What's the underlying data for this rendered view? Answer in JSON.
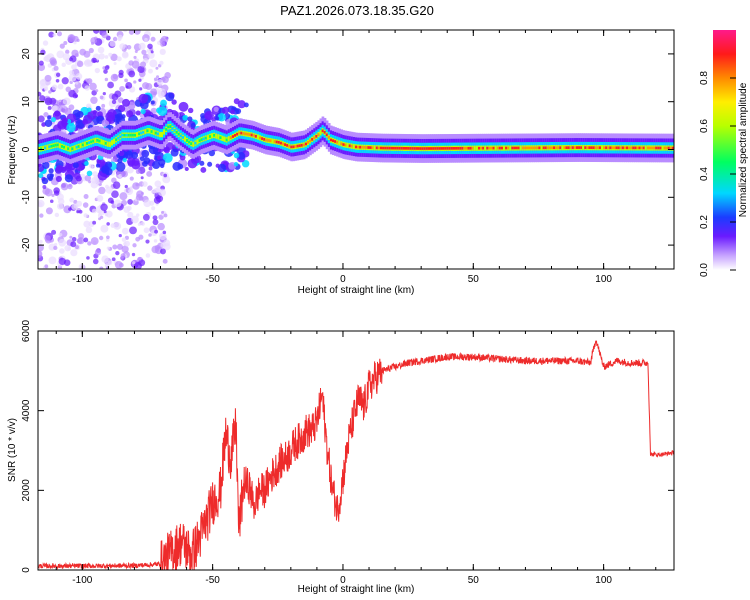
{
  "title": "PAZ1.2026.073.18.35.G20",
  "colors": {
    "snr_line": "#ee2b2b",
    "ridge_core": "#ff2a2a"
  },
  "chart_data": [
    {
      "type": "heatmap",
      "xlabel": "Height of straight line (km)",
      "ylabel": "Frequency (Hz)",
      "xlim": [
        -117,
        127
      ],
      "ylim": [
        -25,
        25
      ],
      "xticks": [
        -100,
        -50,
        0,
        50,
        100
      ],
      "yticks": [
        -20,
        -10,
        0,
        10,
        20
      ],
      "colorbar": {
        "label": "Normalized spectral amplitude",
        "range": [
          0,
          1
        ],
        "ticks": [
          0.0,
          0.2,
          0.4,
          0.6,
          0.8
        ],
        "tick_labels": [
          "0.0",
          "0.2",
          "0.4",
          "0.6",
          "0.8"
        ]
      },
      "ridge": [
        {
          "x": -117,
          "y": 0
        },
        {
          "x": -110,
          "y": 1
        },
        {
          "x": -105,
          "y": 0
        },
        {
          "x": -100,
          "y": 1
        },
        {
          "x": -95,
          "y": 2
        },
        {
          "x": -90,
          "y": 1
        },
        {
          "x": -85,
          "y": 3
        },
        {
          "x": -80,
          "y": 3
        },
        {
          "x": -75,
          "y": 4
        },
        {
          "x": -70,
          "y": 3
        },
        {
          "x": -67,
          "y": 5
        },
        {
          "x": -63,
          "y": 3
        },
        {
          "x": -58,
          "y": 1
        },
        {
          "x": -55,
          "y": 2
        },
        {
          "x": -50,
          "y": 3
        },
        {
          "x": -45,
          "y": 2
        },
        {
          "x": -40,
          "y": 3.5
        },
        {
          "x": -35,
          "y": 3
        },
        {
          "x": -30,
          "y": 2
        },
        {
          "x": -25,
          "y": 1.5
        },
        {
          "x": -20,
          "y": 0.5
        },
        {
          "x": -15,
          "y": 1
        },
        {
          "x": -10,
          "y": 3
        },
        {
          "x": -8,
          "y": 4
        },
        {
          "x": -5,
          "y": 2
        },
        {
          "x": 0,
          "y": 1
        },
        {
          "x": 5,
          "y": 0.5
        },
        {
          "x": 15,
          "y": 0.3
        },
        {
          "x": 30,
          "y": 0.2
        },
        {
          "x": 60,
          "y": 0.3
        },
        {
          "x": 90,
          "y": 0.4
        },
        {
          "x": 127,
          "y": 0.3
        }
      ]
    },
    {
      "type": "line",
      "xlabel": "Height of straight line (km)",
      "ylabel": "SNR (10 * v/v)",
      "xlim": [
        -117,
        127
      ],
      "ylim": [
        0,
        6000
      ],
      "xticks": [
        -100,
        -50,
        0,
        50,
        100
      ],
      "yticks": [
        0,
        2000,
        4000,
        6000
      ],
      "series": [
        {
          "x": [
            -117,
            -100,
            -80,
            -70,
            -65,
            -62,
            -58,
            -55,
            -52,
            -50,
            -47,
            -45,
            -43,
            -41,
            -40,
            -38,
            -36,
            -34,
            -32,
            -30,
            -28,
            -26,
            -24,
            -22,
            -20,
            -18,
            -16,
            -14,
            -12,
            -10,
            -8,
            -6,
            -4,
            -2,
            0,
            2,
            4,
            6,
            8,
            10,
            12,
            15,
            20,
            25,
            30,
            40,
            50,
            60,
            70,
            80,
            90,
            95,
            97,
            100,
            105,
            110,
            117,
            118,
            122,
            127
          ],
          "y": [
            100,
            100,
            110,
            150,
            500,
            700,
            400,
            800,
            1300,
            1700,
            2000,
            3400,
            2800,
            3600,
            1000,
            2200,
            2100,
            1600,
            2000,
            2000,
            2300,
            2500,
            2700,
            2800,
            3000,
            3200,
            3300,
            3500,
            3500,
            3700,
            4400,
            3000,
            2000,
            1500,
            2300,
            3200,
            3800,
            4300,
            4100,
            4600,
            4800,
            5000,
            5100,
            5200,
            5250,
            5350,
            5350,
            5300,
            5250,
            5250,
            5250,
            5200,
            5800,
            5100,
            5250,
            5200,
            5200,
            2900,
            2900,
            2950
          ]
        }
      ]
    }
  ]
}
